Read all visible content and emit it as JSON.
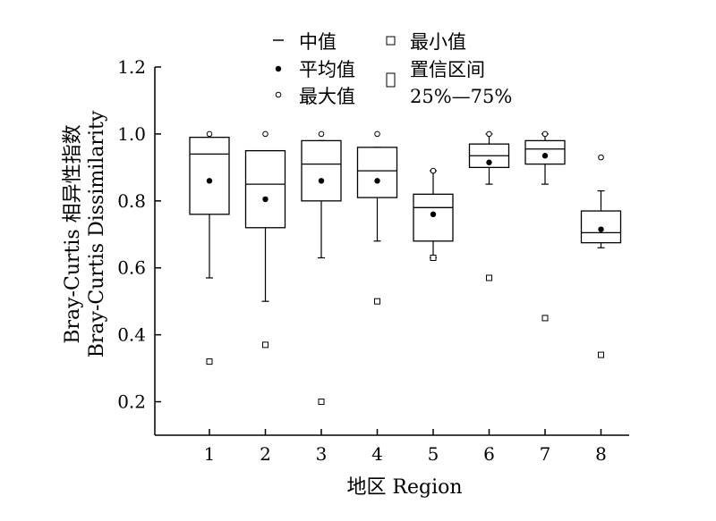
{
  "chart_data": {
    "type": "box",
    "xlabel": "地区 Region",
    "ylabel_line1": "Bray-Curtis 相异性指数",
    "ylabel_line2": "Bray-Curtis Dissimilarity",
    "ylim": [
      0.1,
      1.2
    ],
    "yticks": [
      "0.2",
      "0.4",
      "0.6",
      "0.8",
      "1.0",
      "1.2"
    ],
    "categories": [
      "1",
      "2",
      "3",
      "4",
      "5",
      "6",
      "7",
      "8"
    ],
    "legend": {
      "median": "中值",
      "mean": "平均值",
      "max": "最大值",
      "min": "最小值",
      "ci_line1": "置信区间",
      "ci_line2": "25%—75%"
    },
    "boxes": [
      {
        "region": "1",
        "q1": 0.76,
        "median": 0.94,
        "q3": 0.99,
        "mean": 0.86,
        "whisker_low": 0.57,
        "whisker_high": 0.99,
        "max": 1.0,
        "min": 0.32
      },
      {
        "region": "2",
        "q1": 0.72,
        "median": 0.85,
        "q3": 0.95,
        "mean": 0.805,
        "whisker_low": 0.5,
        "whisker_high": 0.95,
        "max": 1.0,
        "min": 0.37
      },
      {
        "region": "3",
        "q1": 0.8,
        "median": 0.91,
        "q3": 0.98,
        "mean": 0.86,
        "whisker_low": 0.63,
        "whisker_high": 0.98,
        "max": 1.0,
        "min": 0.2
      },
      {
        "region": "4",
        "q1": 0.81,
        "median": 0.89,
        "q3": 0.96,
        "mean": 0.86,
        "whisker_low": 0.68,
        "whisker_high": 0.96,
        "max": 1.0,
        "min": 0.5
      },
      {
        "region": "5",
        "q1": 0.68,
        "median": 0.78,
        "q3": 0.82,
        "mean": 0.76,
        "whisker_low": 0.63,
        "whisker_high": 0.89,
        "max": 0.89,
        "min": 0.63
      },
      {
        "region": "6",
        "q1": 0.9,
        "median": 0.935,
        "q3": 0.97,
        "mean": 0.915,
        "whisker_low": 0.85,
        "whisker_high": 1.0,
        "max": 1.0,
        "min": 0.57
      },
      {
        "region": "7",
        "q1": 0.91,
        "median": 0.955,
        "q3": 0.98,
        "mean": 0.935,
        "whisker_low": 0.85,
        "whisker_high": 1.0,
        "max": 1.0,
        "min": 0.45
      },
      {
        "region": "8",
        "q1": 0.675,
        "median": 0.705,
        "q3": 0.77,
        "mean": 0.715,
        "whisker_low": 0.66,
        "whisker_high": 0.83,
        "max": 0.93,
        "min": 0.34
      }
    ]
  }
}
